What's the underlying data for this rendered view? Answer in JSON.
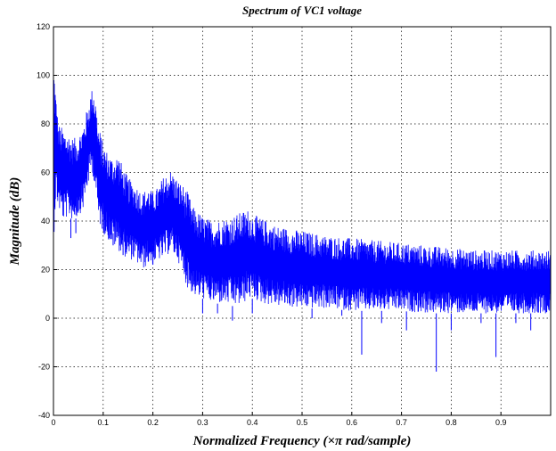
{
  "chart_data": {
    "type": "line",
    "title": "Spectrum of VC1 voltage",
    "xlabel": "Normalized Frequency  (×π rad/sample)",
    "ylabel": "Magnitude (dB)",
    "xlim": [
      0,
      1
    ],
    "ylim": [
      -40,
      120
    ],
    "grid": true,
    "line_color": "#0000ff",
    "x_ticks": [
      0,
      0.1,
      0.2,
      0.3,
      0.4,
      0.5,
      0.6,
      0.7,
      0.8,
      0.9
    ],
    "x_tick_labels": [
      "0",
      "0.1",
      "0.2",
      "0.3",
      "0.4",
      "0.5",
      "0.6",
      "0.7",
      "0.8",
      "0.9"
    ],
    "y_ticks": [
      -40,
      -20,
      0,
      20,
      40,
      60,
      80,
      100,
      120
    ],
    "y_tick_labels": [
      "-40",
      "-20",
      "0",
      "20",
      "40",
      "60",
      "80",
      "100",
      "120"
    ],
    "series": [
      {
        "x": [
          0,
          0.005,
          0.01,
          0.02,
          0.03,
          0.04,
          0.05,
          0.06,
          0.07,
          0.075,
          0.08,
          0.085,
          0.09,
          0.1,
          0.11,
          0.12,
          0.13,
          0.14,
          0.15,
          0.16,
          0.17,
          0.18,
          0.19,
          0.2,
          0.21,
          0.22,
          0.23,
          0.235,
          0.24,
          0.25,
          0.26,
          0.27,
          0.28,
          0.29,
          0.3,
          0.32,
          0.34,
          0.36,
          0.38,
          0.39,
          0.4,
          0.42,
          0.45,
          0.5,
          0.55,
          0.6,
          0.65,
          0.7,
          0.75,
          0.8,
          0.85,
          0.9,
          0.95,
          1.0
        ],
        "upper": [
          110,
          92,
          80,
          78,
          76,
          74,
          75,
          80,
          88,
          93,
          96,
          90,
          80,
          72,
          68,
          66,
          68,
          62,
          58,
          56,
          54,
          52,
          54,
          52,
          54,
          58,
          60,
          61,
          60,
          57,
          55,
          52,
          46,
          44,
          42,
          40,
          41,
          42,
          44,
          45,
          43,
          41,
          38,
          36,
          34,
          33,
          32,
          31,
          30,
          29,
          28,
          28,
          28,
          28
        ],
        "lower": [
          30,
          50,
          45,
          40,
          42,
          40,
          42,
          45,
          55,
          60,
          58,
          52,
          40,
          35,
          32,
          30,
          28,
          26,
          24,
          24,
          22,
          20,
          22,
          22,
          24,
          24,
          26,
          28,
          26,
          24,
          18,
          12,
          10,
          8,
          8,
          6,
          6,
          5,
          5,
          8,
          8,
          6,
          5,
          4,
          4,
          3,
          3,
          3,
          2,
          2,
          2,
          2,
          2,
          2
        ],
        "spikes": [
          [
            0.035,
            33
          ],
          [
            0.045,
            35
          ],
          [
            0.1,
            35
          ],
          [
            0.12,
            35
          ],
          [
            0.14,
            35
          ],
          [
            0.2,
            30
          ],
          [
            0.3,
            2
          ],
          [
            0.33,
            2
          ],
          [
            0.36,
            -1
          ],
          [
            0.4,
            2
          ],
          [
            0.52,
            0
          ],
          [
            0.58,
            1
          ],
          [
            0.62,
            -15
          ],
          [
            0.66,
            -2
          ],
          [
            0.71,
            -5
          ],
          [
            0.77,
            -22
          ],
          [
            0.8,
            -5
          ],
          [
            0.86,
            -2
          ],
          [
            0.89,
            -16
          ],
          [
            0.93,
            -2
          ],
          [
            0.96,
            -5
          ]
        ]
      }
    ]
  }
}
